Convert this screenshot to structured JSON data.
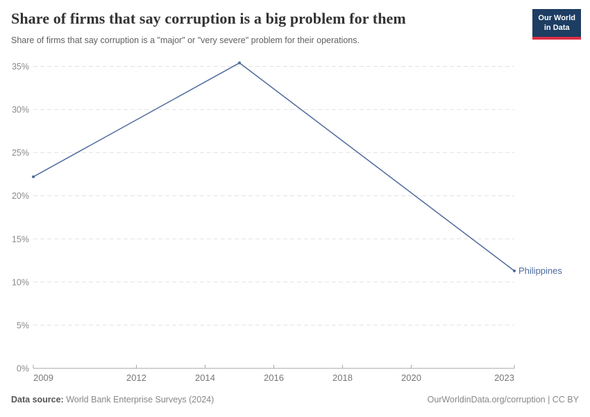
{
  "header": {
    "title": "Share of firms that say corruption is a big problem for them",
    "subtitle": "Share of firms that say corruption is a \"major\" or \"very severe\" problem for their operations.",
    "logo": {
      "line1": "Our World",
      "line2": "in Data"
    }
  },
  "chart_data": {
    "type": "line",
    "title": "Share of firms that say corruption is a big problem for them",
    "subtitle": "Share of firms that say corruption is a \"major\" or \"very severe\" problem for their operations.",
    "xlabel": "",
    "ylabel": "",
    "xlim": [
      2009,
      2023
    ],
    "ylim": [
      0,
      35
    ],
    "x_ticks": [
      2009,
      2012,
      2014,
      2016,
      2018,
      2020,
      2023
    ],
    "y_ticks": [
      0,
      5,
      10,
      15,
      20,
      25,
      30,
      35
    ],
    "y_tick_suffix": "%",
    "grid": "horizontal-dashed",
    "legend": "end-of-line-label",
    "series": [
      {
        "name": "Philippines",
        "color": "#4c6a9c",
        "x": [
          2009,
          2015,
          2023
        ],
        "values": [
          22.2,
          35.4,
          11.3
        ]
      }
    ]
  },
  "footer": {
    "source_label": "Data source:",
    "source_value": "World Bank Enterprise Surveys (2024)",
    "credit": "OurWorldinData.org/corruption | CC BY"
  },
  "colors": {
    "accent": "#4c6a9c",
    "logo_bg": "#1d3d63",
    "logo_accent": "#dc2e44",
    "grid": "#e2e2e2",
    "axis": "#a6a6a6",
    "y_tick_text": "#8a8a8a",
    "x_tick_text": "#777777",
    "title_text": "#333333",
    "subtitle_text": "#606060"
  }
}
